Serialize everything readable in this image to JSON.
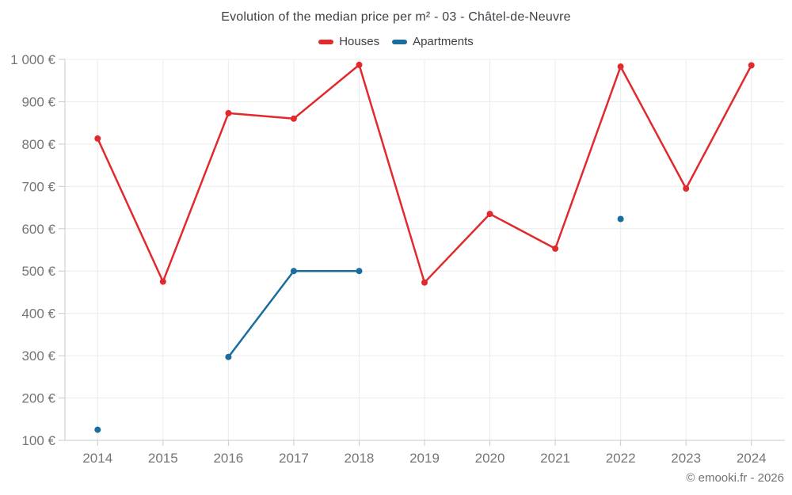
{
  "title": "Evolution of the median price per m² - 03 - Châtel-de-Neuvre",
  "footer": "© emooki.fr - 2026",
  "chart_data": {
    "type": "line",
    "x": [
      2014,
      2015,
      2016,
      2017,
      2018,
      2019,
      2020,
      2021,
      2022,
      2023,
      2024
    ],
    "series": [
      {
        "name": "Houses",
        "color": "#e02a2e",
        "values": [
          813,
          475,
          873,
          860,
          987,
          473,
          635,
          553,
          983,
          695,
          986
        ]
      },
      {
        "name": "Apartments",
        "color": "#1a6d9c",
        "values": [
          125,
          null,
          297,
          500,
          500,
          null,
          null,
          null,
          623,
          null,
          null
        ]
      }
    ],
    "title": "Evolution of the median price per m² - 03 - Châtel-de-Neuvre",
    "xlabel": "",
    "ylabel": "",
    "ylim": [
      100,
      1000
    ],
    "ytick_step": 100,
    "ytick_labels": [
      "100 €",
      "200 €",
      "300 €",
      "400 €",
      "500 €",
      "600 €",
      "700 €",
      "800 €",
      "900 €",
      "1 000 €"
    ],
    "grid": true,
    "legend_position": "top",
    "grid_color": "#ececec",
    "axis_color": "#c9c9c9",
    "tick_label_color": "#757575"
  }
}
